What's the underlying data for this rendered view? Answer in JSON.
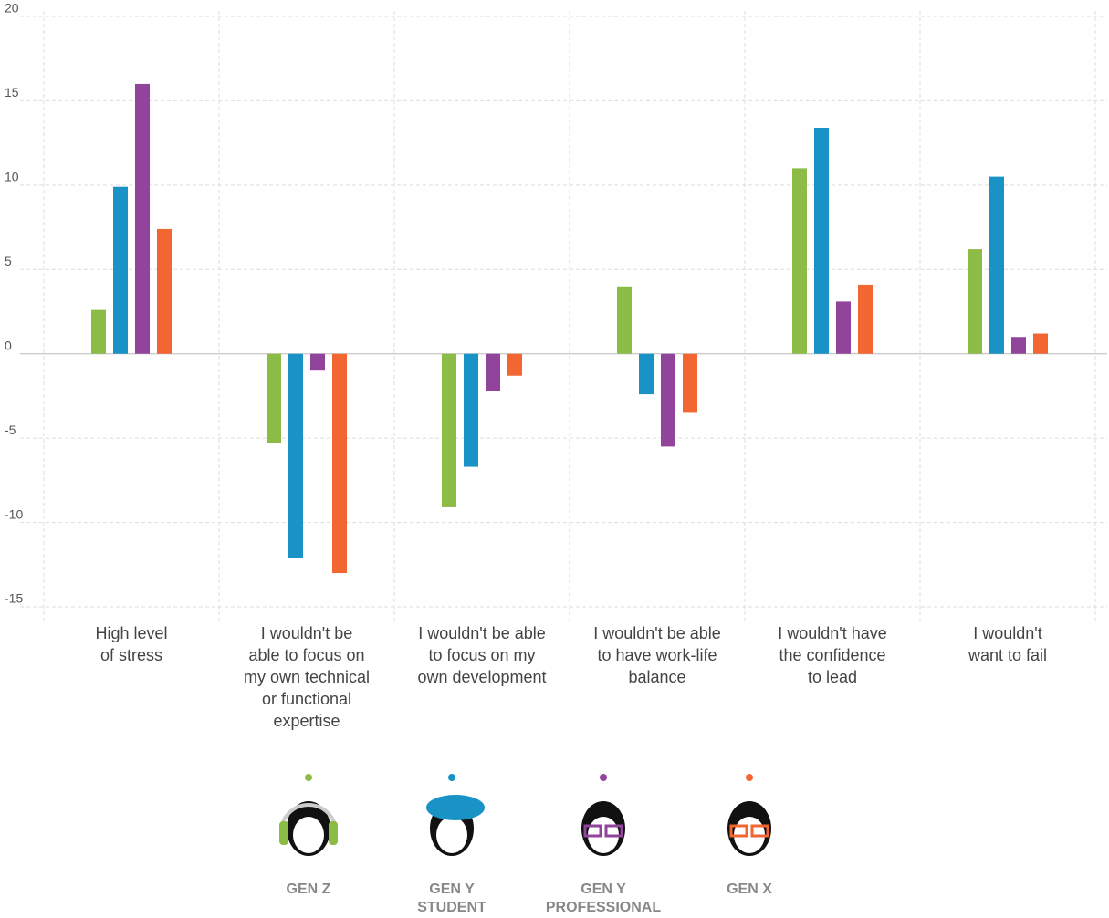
{
  "chart_data": {
    "type": "bar",
    "categories": [
      "High level\nof stress",
      "I wouldn't be\nable to focus on\nmy own technical\nor functional\nexpertise",
      "I wouldn't be able\nto focus on my\nown development",
      "I wouldn't be able\nto have work-life\nbalance",
      "I wouldn't have\nthe confidence\nto lead",
      "I wouldn't\nwant to fail"
    ],
    "series": [
      {
        "name": "GEN Z",
        "color": "#8cbb46",
        "values": [
          2.6,
          -5.3,
          -9.1,
          4.0,
          11.0,
          6.2
        ]
      },
      {
        "name": "GEN Y\nSTUDENT",
        "color": "#1992c6",
        "values": [
          9.9,
          -12.1,
          -6.7,
          -2.4,
          13.4,
          10.5
        ]
      },
      {
        "name": "GEN Y\nPROFESSIONAL",
        "color": "#92439b",
        "values": [
          16.0,
          -1.0,
          -2.2,
          -5.5,
          3.1,
          1.0
        ]
      },
      {
        "name": "GEN X",
        "color": "#f26631",
        "values": [
          7.4,
          -13.0,
          -1.3,
          -3.5,
          4.1,
          1.2
        ]
      }
    ],
    "ylim": [
      -15,
      20
    ],
    "yticks": [
      -15,
      -10,
      -5,
      0,
      5,
      10,
      15,
      20
    ],
    "grid": true
  }
}
